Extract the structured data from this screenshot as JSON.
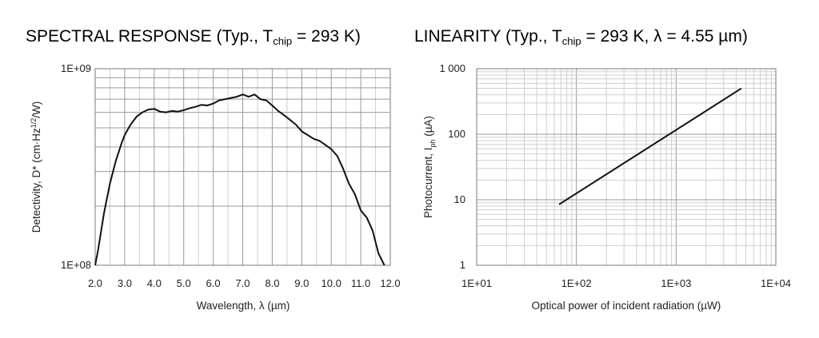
{
  "chart_data": [
    {
      "type": "line",
      "title": {
        "prefix": "SPECTRAL RESPONSE (Typ., T",
        "sub": "chip",
        "suffix": " = 293 K)"
      },
      "xlabel": "Wavelength, λ (µm)",
      "ylabel": {
        "prefix": "Detectivity, D* (cm·Hz",
        "sup": "1/2",
        "suffix": "/W)"
      },
      "x_ticks": [
        "2.0",
        "3.0",
        "4.0",
        "5.0",
        "6.0",
        "7.0",
        "8.0",
        "9.0",
        "10.0",
        "11.0",
        "12.0"
      ],
      "y_ticks": [
        "1E+08",
        "1E+09"
      ],
      "xlim": [
        2.0,
        12.0
      ],
      "ylim": [
        100000000,
        1000000000
      ],
      "y_scale": "log",
      "grid": true,
      "series": [
        {
          "x": [
            2.0,
            2.1,
            2.3,
            2.5,
            2.7,
            2.9,
            3.0,
            3.2,
            3.4,
            3.6,
            3.8,
            4.0,
            4.2,
            4.4,
            4.6,
            4.8,
            5.0,
            5.2,
            5.4,
            5.6,
            5.8,
            6.0,
            6.2,
            6.4,
            6.6,
            6.8,
            7.0,
            7.2,
            7.4,
            7.6,
            7.8,
            8.0,
            8.2,
            8.4,
            8.6,
            8.8,
            9.0,
            9.2,
            9.4,
            9.6,
            9.8,
            10.0,
            10.2,
            10.4,
            10.6,
            10.8,
            11.0,
            11.2,
            11.4,
            11.6,
            11.8
          ],
          "y": [
            100000000,
            120000000,
            185000000,
            260000000,
            340000000,
            420000000,
            460000000,
            520000000,
            570000000,
            600000000,
            620000000,
            625000000,
            605000000,
            600000000,
            610000000,
            605000000,
            615000000,
            630000000,
            640000000,
            655000000,
            650000000,
            665000000,
            690000000,
            700000000,
            710000000,
            720000000,
            740000000,
            720000000,
            740000000,
            700000000,
            690000000,
            650000000,
            610000000,
            580000000,
            550000000,
            520000000,
            480000000,
            460000000,
            440000000,
            430000000,
            410000000,
            390000000,
            360000000,
            310000000,
            260000000,
            230000000,
            190000000,
            175000000,
            150000000,
            115000000,
            100000000
          ]
        }
      ]
    },
    {
      "type": "line",
      "title": {
        "prefix": "LINEARITY (Typ., T",
        "sub": "chip",
        "suffix": " = 293 K, λ = 4.55 µm)"
      },
      "xlabel": "Optical power of incident radiation (µW)",
      "ylabel": {
        "prefix": "Photocurrent, I",
        "sub": "ph",
        "suffix": " (µA)"
      },
      "x_ticks": [
        "1E+01",
        "1E+02",
        "1E+03",
        "1E+04"
      ],
      "y_ticks": [
        "1",
        "10",
        "100",
        "1 000"
      ],
      "xlim": [
        10,
        10000
      ],
      "ylim": [
        1,
        1000
      ],
      "x_scale": "log",
      "y_scale": "log",
      "grid": true,
      "series": [
        {
          "x": [
            67,
            4500
          ],
          "y": [
            8.5,
            500
          ]
        }
      ]
    }
  ]
}
